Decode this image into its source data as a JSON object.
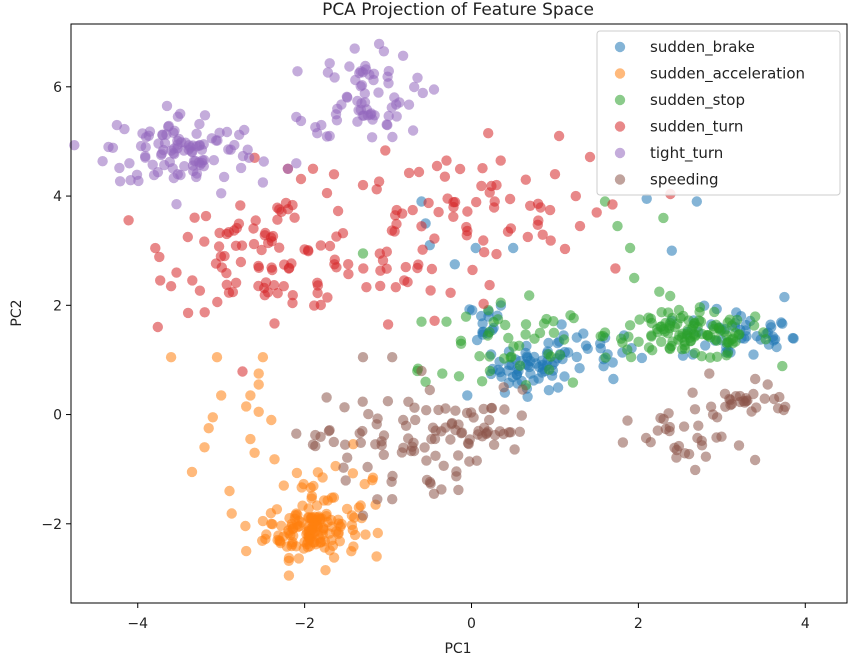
{
  "chart_data": {
    "type": "scatter",
    "title": "PCA Projection of Feature Space",
    "xlabel": "PC1",
    "ylabel": "PC2",
    "xlim": [
      -4.8,
      4.5
    ],
    "ylim": [
      -3.45,
      7.15
    ],
    "xticks": [
      -4,
      -2,
      0,
      2,
      4
    ],
    "yticks": [
      -2,
      0,
      2,
      4,
      6
    ],
    "grid": false,
    "legend_position": "top-right",
    "series": [
      {
        "name": "sudden_brake",
        "color": "#1f77b4",
        "clusters": [
          {
            "center": [
              0.75,
              0.85
            ],
            "spread": [
              0.25,
              0.2
            ],
            "count": 55
          },
          {
            "center": [
              1.3,
              1.15
            ],
            "spread": [
              0.35,
              0.2
            ],
            "count": 25
          },
          {
            "center": [
              3.2,
              1.45
            ],
            "spread": [
              0.35,
              0.25
            ],
            "count": 45
          },
          {
            "center": [
              0.05,
              1.7
            ],
            "spread": [
              0.2,
              0.2
            ],
            "count": 15
          }
        ],
        "points": [
          [
            -0.6,
            3.9
          ],
          [
            -0.55,
            3.5
          ],
          [
            -0.5,
            3.1
          ],
          [
            -0.2,
            2.75
          ],
          [
            0.05,
            3.05
          ],
          [
            0.5,
            3.05
          ],
          [
            2.4,
            3.0
          ],
          [
            2.1,
            3.95
          ],
          [
            2.7,
            3.9
          ],
          [
            1.7,
            0.65
          ],
          [
            -0.05,
            0.35
          ],
          [
            0.4,
            0.4
          ],
          [
            3.75,
            2.15
          ],
          [
            3.85,
            1.4
          ]
        ]
      },
      {
        "name": "sudden_acceleration",
        "color": "#ff7f0e",
        "clusters": [
          {
            "center": [
              -1.9,
              -2.1
            ],
            "spread": [
              0.28,
              0.25
            ],
            "count": 130
          },
          {
            "center": [
              -1.75,
              -1.2
            ],
            "spread": [
              0.35,
              0.3
            ],
            "count": 20
          }
        ],
        "points": [
          [
            -3.6,
            1.05
          ],
          [
            -3.05,
            1.05
          ],
          [
            -2.5,
            1.05
          ],
          [
            -2.55,
            0.75
          ],
          [
            -2.55,
            0.55
          ],
          [
            -2.65,
            0.35
          ],
          [
            -3.0,
            0.35
          ],
          [
            -2.7,
            0.15
          ],
          [
            -2.55,
            0.05
          ],
          [
            -3.1,
            -0.05
          ],
          [
            -2.4,
            -0.1
          ],
          [
            -3.15,
            -0.25
          ],
          [
            -2.65,
            -0.45
          ],
          [
            -3.2,
            -0.6
          ],
          [
            -2.6,
            -0.7
          ],
          [
            -3.35,
            -1.05
          ],
          [
            -2.9,
            -1.4
          ],
          [
            -2.25,
            -1.3
          ],
          [
            -1.35,
            -1.7
          ],
          [
            -2.5,
            -1.95
          ],
          [
            -1.75,
            -2.85
          ],
          [
            -2.7,
            -2.5
          ],
          [
            -2.4,
            -2.0
          ],
          [
            -1.15,
            -1.65
          ]
        ]
      },
      {
        "name": "sudden_stop",
        "color": "#2ca02c",
        "clusters": [
          {
            "center": [
              2.6,
              1.45
            ],
            "spread": [
              0.5,
              0.22
            ],
            "count": 110
          },
          {
            "center": [
              0.55,
              1.2
            ],
            "spread": [
              0.45,
              0.4
            ],
            "count": 40
          }
        ],
        "points": [
          [
            -0.65,
            0.8
          ],
          [
            -0.55,
            0.6
          ],
          [
            -0.35,
            0.75
          ],
          [
            -0.15,
            0.7
          ],
          [
            -0.3,
            1.7
          ],
          [
            -0.6,
            1.7
          ],
          [
            -1.3,
            2.95
          ],
          [
            1.6,
            3.9
          ],
          [
            1.75,
            3.45
          ],
          [
            1.9,
            3.05
          ],
          [
            2.3,
            3.6
          ],
          [
            2.25,
            2.25
          ],
          [
            1.95,
            2.5
          ],
          [
            1.6,
            1.5
          ],
          [
            2.75,
            1.7
          ]
        ]
      },
      {
        "name": "sudden_turn",
        "color": "#d62728",
        "clusters": [
          {
            "center": [
              -2.4,
              3.0
            ],
            "spread": [
              0.6,
              0.55
            ],
            "count": 90
          },
          {
            "center": [
              -0.3,
              3.6
            ],
            "spread": [
              0.85,
              0.55
            ],
            "count": 60
          },
          {
            "center": [
              -0.8,
              2.35
            ],
            "spread": [
              0.5,
              0.35
            ],
            "count": 20
          }
        ],
        "points": [
          [
            -3.6,
            2.35
          ],
          [
            -3.4,
            3.25
          ],
          [
            -2.6,
            4.7
          ],
          [
            -2.2,
            4.5
          ],
          [
            -1.9,
            4.5
          ],
          [
            -1.3,
            4.2
          ],
          [
            -0.3,
            4.65
          ],
          [
            0.35,
            4.65
          ],
          [
            1.0,
            4.4
          ],
          [
            1.05,
            5.1
          ],
          [
            0.2,
            5.15
          ],
          [
            1.3,
            3.45
          ],
          [
            1.5,
            3.7
          ],
          [
            0.65,
            4.3
          ],
          [
            -1.0,
            1.65
          ],
          [
            -2.25,
            2.35
          ],
          [
            1.25,
            4.0
          ],
          [
            0.8,
            3.55
          ],
          [
            0.3,
            4.2
          ]
        ]
      },
      {
        "name": "tight_turn",
        "color": "#9467bd",
        "clusters": [
          {
            "center": [
              -3.45,
              4.85
            ],
            "spread": [
              0.45,
              0.35
            ],
            "count": 95
          },
          {
            "center": [
              -1.3,
              5.85
            ],
            "spread": [
              0.3,
              0.4
            ],
            "count": 60
          }
        ],
        "points": [
          [
            -4.35,
            4.9
          ],
          [
            -4.25,
            5.3
          ],
          [
            -4.1,
            4.6
          ],
          [
            -3.65,
            5.65
          ],
          [
            -2.5,
            4.25
          ],
          [
            -2.2,
            4.5
          ],
          [
            -2.1,
            4.6
          ],
          [
            -3.0,
            4.05
          ],
          [
            -3.3,
            4.35
          ],
          [
            -1.7,
            5.1
          ],
          [
            -1.8,
            5.3
          ],
          [
            -2.1,
            5.45
          ],
          [
            -0.7,
            5.2
          ],
          [
            -0.45,
            5.95
          ],
          [
            -1.05,
            6.65
          ],
          [
            -1.4,
            6.7
          ],
          [
            -1.85,
            5.15
          ]
        ]
      },
      {
        "name": "speeding",
        "color": "#8c564b",
        "clusters": [
          {
            "center": [
              -0.9,
              -0.55
            ],
            "spread": [
              0.5,
              0.45
            ],
            "count": 65
          },
          {
            "center": [
              0.05,
              -0.25
            ],
            "spread": [
              0.4,
              0.35
            ],
            "count": 35
          },
          {
            "center": [
              2.6,
              -0.55
            ],
            "spread": [
              0.35,
              0.3
            ],
            "count": 30
          },
          {
            "center": [
              3.35,
              0.25
            ],
            "spread": [
              0.3,
              0.12
            ],
            "count": 25
          }
        ],
        "points": [
          [
            -1.3,
            1.05
          ],
          [
            -0.95,
            1.05
          ],
          [
            -0.6,
            0.8
          ],
          [
            -0.5,
            0.45
          ],
          [
            -1.9,
            -0.55
          ],
          [
            -2.1,
            -0.35
          ],
          [
            -1.65,
            -0.5
          ],
          [
            -1.3,
            -1.85
          ],
          [
            -0.95,
            -1.55
          ],
          [
            -0.45,
            -1.45
          ],
          [
            3.4,
            0.65
          ],
          [
            2.85,
            0.75
          ],
          [
            3.55,
            0.55
          ],
          [
            2.65,
            0.4
          ]
        ]
      }
    ]
  }
}
